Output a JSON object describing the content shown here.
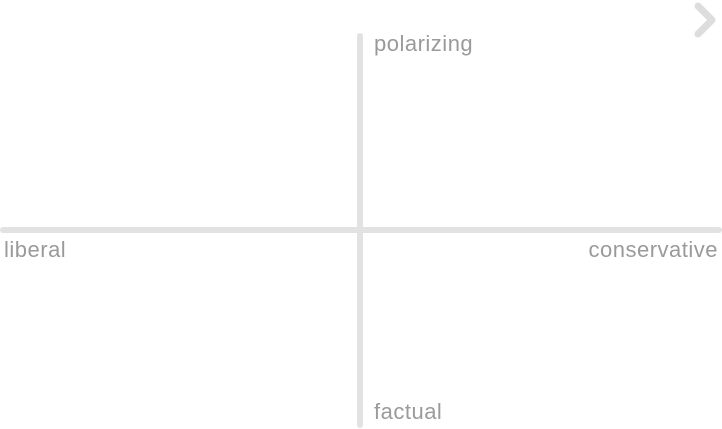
{
  "quadrant": {
    "top_label": "polarizing",
    "bottom_label": "factual",
    "left_label": "liberal",
    "right_label": "conservative"
  },
  "navigation": {
    "next_icon": "chevron-right-icon"
  },
  "colors": {
    "axis": "#e2e2e2",
    "label_text": "#9a9a9a",
    "next_icon": "#dddddd",
    "background": "#ffffff"
  }
}
